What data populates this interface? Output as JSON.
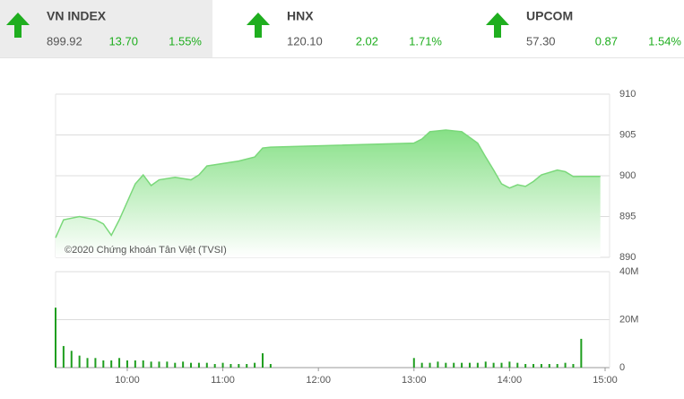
{
  "header": {
    "tiles": [
      {
        "name": "VN INDEX",
        "value": "899.92",
        "change": "13.70",
        "percent": "1.55%"
      },
      {
        "name": "HNX",
        "value": "120.10",
        "change": "2.02",
        "percent": "1.71%"
      },
      {
        "name": "UPCOM",
        "value": "57.30",
        "change": "0.87",
        "percent": "1.54%"
      }
    ]
  },
  "chart_data": [
    {
      "type": "area",
      "annotation": "©2020 Chứng khoán Tân Việt (TVSI)",
      "color": "#7ad87a",
      "x": [
        555,
        560,
        570,
        580,
        585,
        590,
        595,
        600,
        605,
        610,
        615,
        620,
        630,
        640,
        645,
        650,
        660,
        670,
        680,
        685,
        690,
        780,
        785,
        790,
        800,
        810,
        820,
        825,
        830,
        835,
        840,
        845,
        850,
        855,
        860,
        870,
        875,
        880,
        885,
        897
      ],
      "values": [
        892.4,
        894.6,
        895,
        894.6,
        894.1,
        892.7,
        894.6,
        896.8,
        899,
        900.1,
        898.8,
        899.5,
        899.8,
        899.5,
        900.1,
        901.2,
        901.5,
        901.8,
        902.3,
        903.4,
        903.5,
        904,
        904.5,
        905.4,
        905.6,
        905.4,
        904,
        902.3,
        900.7,
        899,
        898.5,
        898.9,
        898.7,
        899.3,
        900.1,
        900.7,
        900.5,
        899.9,
        899.92,
        899.92
      ],
      "xlim": [
        555,
        900
      ],
      "ylim": [
        890,
        910
      ],
      "yticks": [
        890,
        895,
        900,
        905,
        910
      ],
      "grid": true
    },
    {
      "type": "bar",
      "color": "#1f9e1f",
      "x": [
        555,
        560,
        565,
        570,
        575,
        580,
        585,
        590,
        595,
        600,
        605,
        610,
        615,
        620,
        625,
        630,
        635,
        640,
        645,
        650,
        655,
        660,
        665,
        670,
        675,
        680,
        685,
        690,
        780,
        785,
        790,
        795,
        800,
        805,
        810,
        815,
        820,
        825,
        830,
        835,
        840,
        845,
        850,
        855,
        860,
        865,
        870,
        875,
        880,
        885
      ],
      "values": [
        25000000,
        9000000,
        7000000,
        5000000,
        4000000,
        4000000,
        3000000,
        3000000,
        4000000,
        3000000,
        3000000,
        3000000,
        2500000,
        2500000,
        2500000,
        2000000,
        2500000,
        2000000,
        2000000,
        2000000,
        1500000,
        2000000,
        1500000,
        1500000,
        1500000,
        2000000,
        6000000,
        1500000,
        4000000,
        2000000,
        2000000,
        2500000,
        2000000,
        2000000,
        2000000,
        2000000,
        2000000,
        2500000,
        2000000,
        2000000,
        2500000,
        2000000,
        1500000,
        1500000,
        1500000,
        1500000,
        1500000,
        2000000,
        1500000,
        12000000
      ],
      "xlim": [
        555,
        900
      ],
      "ylim": [
        0,
        40000000
      ],
      "yticks": [
        0,
        {
          "value": 20000000,
          "label": "20M"
        },
        {
          "value": 40000000,
          "label": "40M"
        }
      ],
      "xticks": [
        {
          "value": 600,
          "label": "10:00"
        },
        {
          "value": 660,
          "label": "11:00"
        },
        {
          "value": 720,
          "label": "12:00"
        },
        {
          "value": 780,
          "label": "13:00"
        },
        {
          "value": 840,
          "label": "14:00"
        },
        {
          "value": 900,
          "label": "15:00"
        }
      ],
      "grid": true
    }
  ]
}
